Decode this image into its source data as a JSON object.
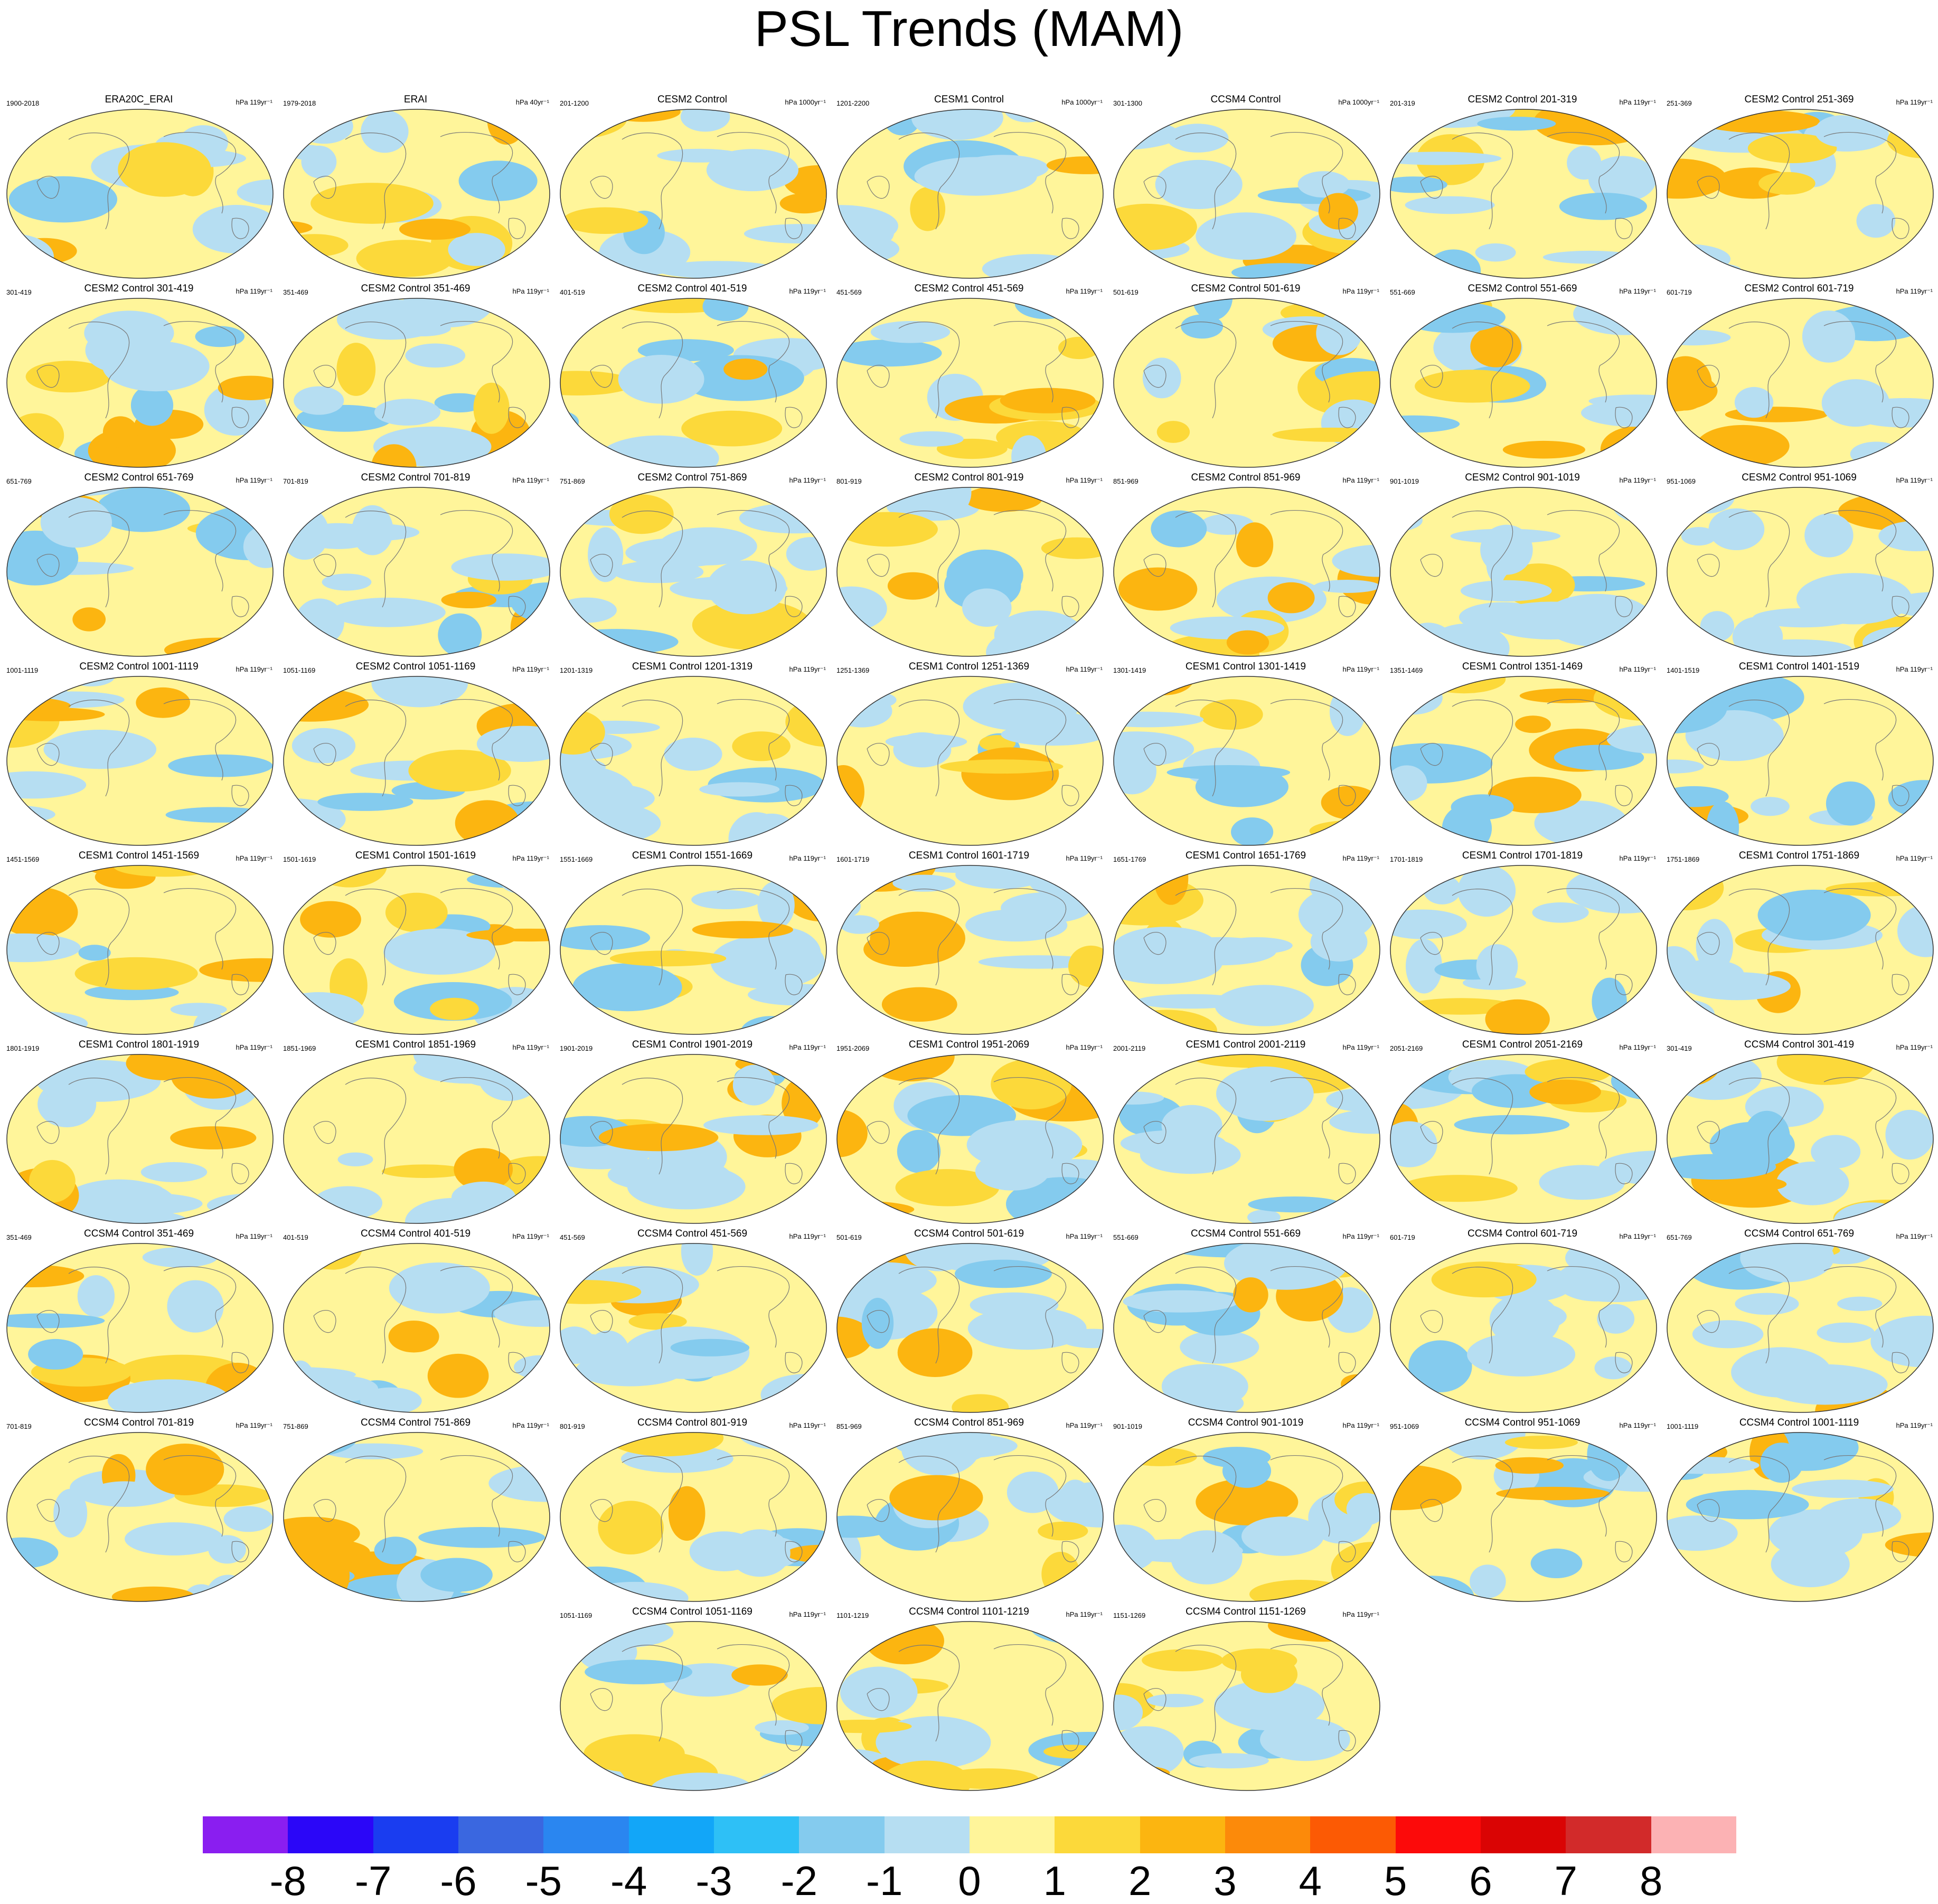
{
  "title": "PSL Trends (MAM)",
  "panels": [
    {
      "title": "ERA20C_ERAI",
      "years": "1900-2018",
      "units": "hPa 119yr⁻¹"
    },
    {
      "title": "ERAI",
      "years": "1979-2018",
      "units": "hPa 40yr⁻¹"
    },
    {
      "title": "CESM2 Control",
      "years": "201-1200",
      "units": "hPa 1000yr⁻¹"
    },
    {
      "title": "CESM1 Control",
      "years": "1201-2200",
      "units": "hPa 1000yr⁻¹"
    },
    {
      "title": "CCSM4 Control",
      "years": "301-1300",
      "units": "hPa 1000yr⁻¹"
    },
    {
      "title": "CESM2 Control 201-319",
      "years": "201-319",
      "units": "hPa 119yr⁻¹"
    },
    {
      "title": "CESM2 Control 251-369",
      "years": "251-369",
      "units": "hPa 119yr⁻¹"
    },
    {
      "title": "CESM2 Control 301-419",
      "years": "301-419",
      "units": "hPa 119yr⁻¹"
    },
    {
      "title": "CESM2 Control 351-469",
      "years": "351-469",
      "units": "hPa 119yr⁻¹"
    },
    {
      "title": "CESM2 Control 401-519",
      "years": "401-519",
      "units": "hPa 119yr⁻¹"
    },
    {
      "title": "CESM2 Control 451-569",
      "years": "451-569",
      "units": "hPa 119yr⁻¹"
    },
    {
      "title": "CESM2 Control 501-619",
      "years": "501-619",
      "units": "hPa 119yr⁻¹"
    },
    {
      "title": "CESM2 Control 551-669",
      "years": "551-669",
      "units": "hPa 119yr⁻¹"
    },
    {
      "title": "CESM2 Control 601-719",
      "years": "601-719",
      "units": "hPa 119yr⁻¹"
    },
    {
      "title": "CESM2 Control 651-769",
      "years": "651-769",
      "units": "hPa 119yr⁻¹"
    },
    {
      "title": "CESM2 Control 701-819",
      "years": "701-819",
      "units": "hPa 119yr⁻¹"
    },
    {
      "title": "CESM2 Control 751-869",
      "years": "751-869",
      "units": "hPa 119yr⁻¹"
    },
    {
      "title": "CESM2 Control 801-919",
      "years": "801-919",
      "units": "hPa 119yr⁻¹"
    },
    {
      "title": "CESM2 Control 851-969",
      "years": "851-969",
      "units": "hPa 119yr⁻¹"
    },
    {
      "title": "CESM2 Control 901-1019",
      "years": "901-1019",
      "units": "hPa 119yr⁻¹"
    },
    {
      "title": "CESM2 Control 951-1069",
      "years": "951-1069",
      "units": "hPa 119yr⁻¹"
    },
    {
      "title": "CESM2 Control 1001-1119",
      "years": "1001-1119",
      "units": "hPa 119yr⁻¹"
    },
    {
      "title": "CESM2 Control 1051-1169",
      "years": "1051-1169",
      "units": "hPa 119yr⁻¹"
    },
    {
      "title": "CESM1 Control 1201-1319",
      "years": "1201-1319",
      "units": "hPa 119yr⁻¹"
    },
    {
      "title": "CESM1 Control 1251-1369",
      "years": "1251-1369",
      "units": "hPa 119yr⁻¹"
    },
    {
      "title": "CESM1 Control 1301-1419",
      "years": "1301-1419",
      "units": "hPa 119yr⁻¹"
    },
    {
      "title": "CESM1 Control 1351-1469",
      "years": "1351-1469",
      "units": "hPa 119yr⁻¹"
    },
    {
      "title": "CESM1 Control 1401-1519",
      "years": "1401-1519",
      "units": "hPa 119yr⁻¹"
    },
    {
      "title": "CESM1 Control 1451-1569",
      "years": "1451-1569",
      "units": "hPa 119yr⁻¹"
    },
    {
      "title": "CESM1 Control 1501-1619",
      "years": "1501-1619",
      "units": "hPa 119yr⁻¹"
    },
    {
      "title": "CESM1 Control 1551-1669",
      "years": "1551-1669",
      "units": "hPa 119yr⁻¹"
    },
    {
      "title": "CESM1 Control 1601-1719",
      "years": "1601-1719",
      "units": "hPa 119yr⁻¹"
    },
    {
      "title": "CESM1 Control 1651-1769",
      "years": "1651-1769",
      "units": "hPa 119yr⁻¹"
    },
    {
      "title": "CESM1 Control 1701-1819",
      "years": "1701-1819",
      "units": "hPa 119yr⁻¹"
    },
    {
      "title": "CESM1 Control 1751-1869",
      "years": "1751-1869",
      "units": "hPa 119yr⁻¹"
    },
    {
      "title": "CESM1 Control 1801-1919",
      "years": "1801-1919",
      "units": "hPa 119yr⁻¹"
    },
    {
      "title": "CESM1 Control 1851-1969",
      "years": "1851-1969",
      "units": "hPa 119yr⁻¹"
    },
    {
      "title": "CESM1 Control 1901-2019",
      "years": "1901-2019",
      "units": "hPa 119yr⁻¹"
    },
    {
      "title": "CESM1 Control 1951-2069",
      "years": "1951-2069",
      "units": "hPa 119yr⁻¹"
    },
    {
      "title": "CESM1 Control 2001-2119",
      "years": "2001-2119",
      "units": "hPa 119yr⁻¹"
    },
    {
      "title": "CESM1 Control 2051-2169",
      "years": "2051-2169",
      "units": "hPa 119yr⁻¹"
    },
    {
      "title": "CCSM4 Control 301-419",
      "years": "301-419",
      "units": "hPa 119yr⁻¹"
    },
    {
      "title": "CCSM4 Control 351-469",
      "years": "351-469",
      "units": "hPa 119yr⁻¹"
    },
    {
      "title": "CCSM4 Control 401-519",
      "years": "401-519",
      "units": "hPa 119yr⁻¹"
    },
    {
      "title": "CCSM4 Control 451-569",
      "years": "451-569",
      "units": "hPa 119yr⁻¹"
    },
    {
      "title": "CCSM4 Control 501-619",
      "years": "501-619",
      "units": "hPa 119yr⁻¹"
    },
    {
      "title": "CCSM4 Control 551-669",
      "years": "551-669",
      "units": "hPa 119yr⁻¹"
    },
    {
      "title": "CCSM4 Control 601-719",
      "years": "601-719",
      "units": "hPa 119yr⁻¹"
    },
    {
      "title": "CCSM4 Control 651-769",
      "years": "651-769",
      "units": "hPa 119yr⁻¹"
    },
    {
      "title": "CCSM4 Control 701-819",
      "years": "701-819",
      "units": "hPa 119yr⁻¹"
    },
    {
      "title": "CCSM4 Control 751-869",
      "years": "751-869",
      "units": "hPa 119yr⁻¹"
    },
    {
      "title": "CCSM4 Control 801-919",
      "years": "801-919",
      "units": "hPa 119yr⁻¹"
    },
    {
      "title": "CCSM4 Control 851-969",
      "years": "851-969",
      "units": "hPa 119yr⁻¹"
    },
    {
      "title": "CCSM4 Control 901-1019",
      "years": "901-1019",
      "units": "hPa 119yr⁻¹"
    },
    {
      "title": "CCSM4 Control 951-1069",
      "years": "951-1069",
      "units": "hPa 119yr⁻¹"
    },
    {
      "title": "CCSM4 Control 1001-1119",
      "years": "1001-1119",
      "units": "hPa 119yr⁻¹"
    },
    {
      "title": "CCSM4 Control 1051-1169",
      "years": "1051-1169",
      "units": "hPa 119yr⁻¹"
    },
    {
      "title": "CCSM4 Control 1101-1219",
      "years": "1101-1219",
      "units": "hPa 119yr⁻¹"
    },
    {
      "title": "CCSM4 Control 1151-1269",
      "years": "1151-1269",
      "units": "hPa 119yr⁻¹"
    }
  ],
  "colorbar": {
    "labels": [
      "-8",
      "-7",
      "-6",
      "-5",
      "-4",
      "-3",
      "-2",
      "-1",
      "0",
      "1",
      "2",
      "3",
      "4",
      "5",
      "6",
      "7",
      "8"
    ],
    "colors": [
      "#8a1ef0",
      "#2b06f8",
      "#1a3df0",
      "#3a67e0",
      "#2a86f0",
      "#12a6f8",
      "#2ec0f6",
      "#84cbee",
      "#b6def2",
      "#fff59a",
      "#fcd93a",
      "#fcb510",
      "#fc8a0a",
      "#fc5a04",
      "#fc0a0a",
      "#da0404",
      "#d22a2a",
      "#fcb2b4"
    ]
  }
}
